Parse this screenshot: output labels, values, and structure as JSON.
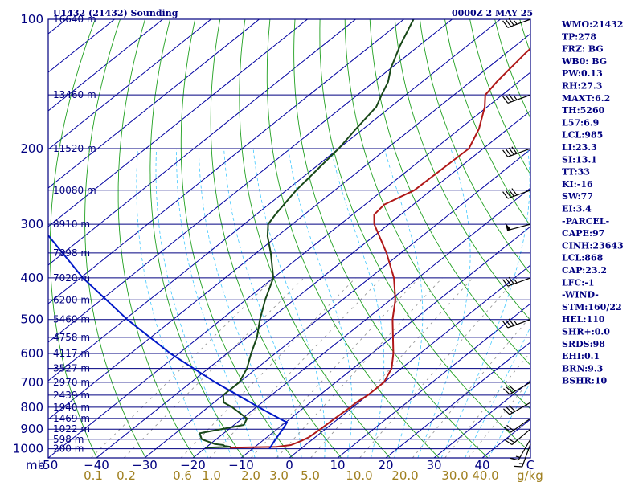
{
  "header": {
    "station": "U1432 (21432) Sounding",
    "time": "0000Z  2 MAY 25"
  },
  "chart_data": {
    "type": "skew-t log-p sounding",
    "title": "U1432 (21432) Sounding",
    "pressure_axis": {
      "unit": "mb",
      "range": [
        1050,
        100
      ],
      "scale": "log",
      "ticks": [
        100,
        200,
        300,
        400,
        500,
        600,
        700,
        800,
        900,
        1000
      ],
      "tick_labels": [
        "100",
        "200",
        "300",
        "400",
        "500",
        "600",
        "700",
        "800",
        "900",
        "1000"
      ],
      "unit_label": "mb"
    },
    "temperature_axis": {
      "unit": "°C",
      "range": [
        -50,
        50
      ],
      "ticks": [
        -50,
        -40,
        -30,
        -20,
        -10,
        0,
        10,
        20,
        30,
        40,
        50
      ],
      "tick_labels": [
        "-50",
        "−40",
        "−30",
        "−20",
        "−10",
        "0",
        "10",
        "20",
        "30",
        "40",
        "C"
      ]
    },
    "mixing_ratio_axis": {
      "unit": "g/kg",
      "labels": [
        "0.1",
        "0.2",
        "0.6",
        "1.0",
        "2.0",
        "3.0",
        "5.0",
        "10.0",
        "20.0",
        "30.0",
        "40.0"
      ],
      "unit_label": "g/kg"
    },
    "height_levels": [
      {
        "p": 100,
        "label": "16640 m"
      },
      {
        "p": 150,
        "label": "13460 m"
      },
      {
        "p": 200,
        "label": "11520 m"
      },
      {
        "p": 250,
        "label": "10080 m"
      },
      {
        "p": 300,
        "label": "8910 m"
      },
      {
        "p": 350,
        "label": "7898 m"
      },
      {
        "p": 400,
        "label": "7020 m"
      },
      {
        "p": 450,
        "label": "6200 m"
      },
      {
        "p": 500,
        "label": "5460 m"
      },
      {
        "p": 550,
        "label": "4758 m"
      },
      {
        "p": 600,
        "label": "4117 m"
      },
      {
        "p": 650,
        "label": "3527 m"
      },
      {
        "p": 700,
        "label": "2970 m"
      },
      {
        "p": 750,
        "label": "2439 m"
      },
      {
        "p": 800,
        "label": "1940 m"
      },
      {
        "p": 850,
        "label": "1469 m"
      },
      {
        "p": 900,
        "label": "1022 m"
      },
      {
        "p": 950,
        "label": "598 m"
      },
      {
        "p": 1000,
        "label": "200 m"
      }
    ],
    "series": [
      {
        "name": "temperature",
        "color": "#b01818",
        "points": [
          [
            994,
            -15
          ],
          [
            990,
            -5.5
          ],
          [
            980,
            -3
          ],
          [
            960,
            -2
          ],
          [
            940,
            -1.3
          ],
          [
            900,
            -1
          ],
          [
            850,
            -0.8
          ],
          [
            800,
            -0.5
          ],
          [
            780,
            -0.5
          ],
          [
            750,
            0
          ],
          [
            700,
            0
          ],
          [
            650,
            -2
          ],
          [
            600,
            -5.5
          ],
          [
            500,
            -14.5
          ],
          [
            450,
            -19
          ],
          [
            400,
            -25
          ],
          [
            350,
            -33
          ],
          [
            300,
            -43
          ],
          [
            285,
            -45.5
          ],
          [
            270,
            -46
          ],
          [
            250,
            -43.5
          ],
          [
            200,
            -43
          ],
          [
            180,
            -46
          ],
          [
            160,
            -50.5
          ],
          [
            150,
            -53.5
          ],
          [
            140,
            -54.5
          ],
          [
            120,
            -56
          ],
          [
            110,
            -56.5
          ],
          [
            100,
            -57
          ]
        ]
      },
      {
        "name": "dewpoint",
        "color": "#184818",
        "points": [
          [
            994,
            -20
          ],
          [
            990,
            -15
          ],
          [
            985,
            -16.5
          ],
          [
            980,
            -17
          ],
          [
            975,
            -19
          ],
          [
            950,
            -23
          ],
          [
            920,
            -25
          ],
          [
            880,
            -18
          ],
          [
            850,
            -19
          ],
          [
            800,
            -25
          ],
          [
            780,
            -28
          ],
          [
            750,
            -30
          ],
          [
            700,
            -30
          ],
          [
            650,
            -32
          ],
          [
            600,
            -35
          ],
          [
            550,
            -38
          ],
          [
            500,
            -42
          ],
          [
            450,
            -46
          ],
          [
            400,
            -50
          ],
          [
            350,
            -57
          ],
          [
            320,
            -62
          ],
          [
            300,
            -65
          ],
          [
            285,
            -66
          ],
          [
            250,
            -68
          ],
          [
            200,
            -70
          ],
          [
            180,
            -71.5
          ],
          [
            160,
            -73
          ],
          [
            150,
            -75
          ],
          [
            140,
            -77
          ],
          [
            130,
            -80
          ],
          [
            115,
            -84
          ],
          [
            100,
            -88
          ]
        ]
      },
      {
        "name": "parcel",
        "color": "#0018c8",
        "points": [
          [
            1000,
            -6.5
          ],
          [
            950,
            -7.7
          ],
          [
            900,
            -8.8
          ],
          [
            868,
            -9.7
          ],
          [
            850,
            -12.3
          ],
          [
            800,
            -19.5
          ],
          [
            700,
            -35
          ],
          [
            600,
            -51.7
          ],
          [
            500,
            -69.5
          ],
          [
            400,
            -89.5
          ],
          [
            300,
            -112.5
          ],
          [
            200,
            -140
          ],
          [
            150,
            -157
          ],
          [
            100,
            -176
          ]
        ]
      }
    ],
    "wind_barbs": [
      {
        "p": 975,
        "dir": 200,
        "spd": 15
      },
      {
        "p": 950,
        "dir": 210,
        "spd": 15
      },
      {
        "p": 900,
        "dir": 230,
        "spd": 20
      },
      {
        "p": 850,
        "dir": 235,
        "spd": 20
      },
      {
        "p": 780,
        "dir": 240,
        "spd": 30
      },
      {
        "p": 700,
        "dir": 240,
        "spd": 30
      },
      {
        "p": 500,
        "dir": 250,
        "spd": 35
      },
      {
        "p": 400,
        "dir": 250,
        "spd": 35
      },
      {
        "p": 300,
        "dir": 255,
        "spd": 50
      },
      {
        "p": 250,
        "dir": 250,
        "spd": 40
      },
      {
        "p": 200,
        "dir": 250,
        "spd": 40
      },
      {
        "p": 150,
        "dir": 250,
        "spd": 35
      },
      {
        "p": 100,
        "dir": 250,
        "spd": 35
      }
    ],
    "grid": true
  },
  "indices": [
    "WMO:21432",
    "TP:278",
    "FRZ: BG",
    "WB0: BG",
    "PW:0.13",
    "RH:27.3",
    "MAXT:6.2",
    "TH:5260",
    "L57:6.9",
    "LCL:985",
    "LI:23.3",
    "SI:13.1",
    "TT:33",
    "KI:-16",
    "SW:77",
    "EI:3.4",
    "-PARCEL-",
    "CAPE:97",
    "CINH:23643",
    "LCL:868",
    "CAP:23.2",
    "LFC:-1",
    "-WIND-",
    "STM:160/22",
    "HEL:110",
    "SHR+:0.0",
    "SRDS:98",
    "EHI:0.1",
    "BRN:9.3",
    "BSHR:10"
  ],
  "colors": {
    "frame": "#000080",
    "isobar": "#000080",
    "isotherm": "#0000a0",
    "dry_adiabat": "#20a020",
    "moist_adiabat": "#40c8ff",
    "mixing_ratio": "#909090",
    "temperature": "#b01818",
    "dewpoint": "#184818",
    "parcel": "#0018c8",
    "barb": "#000000"
  }
}
